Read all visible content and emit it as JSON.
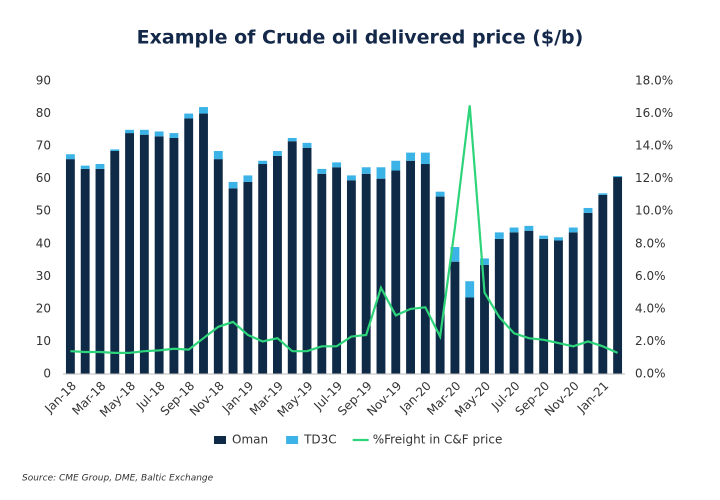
{
  "chart_data": {
    "type": "bar_line",
    "title": "Example of Crude oil delivered price ($/b)",
    "source": "Source: CME Group, DME, Baltic Exchange",
    "categories": [
      "Jan-18",
      null,
      "Mar-18",
      null,
      "May-18",
      null,
      "Jul-18",
      null,
      "Sep-18",
      null,
      "Nov-18",
      null,
      "Jan-19",
      null,
      "Mar-19",
      null,
      "May-19",
      null,
      "Jul-19",
      null,
      "Sep-19",
      null,
      "Nov-19",
      null,
      "Jan-20",
      null,
      "Mar-20",
      null,
      "May-20",
      null,
      "Jul-20",
      null,
      "Sep-20",
      null,
      "Nov-20",
      null,
      "Jan-21",
      null
    ],
    "series": [
      {
        "name": "Oman",
        "color": "#0f2a47",
        "values": [
          66,
          63,
          63,
          68.5,
          74,
          73.5,
          73,
          72.5,
          78.5,
          80,
          66,
          57,
          59,
          64.5,
          67,
          71.5,
          69.5,
          61.5,
          63.5,
          59.5,
          61.5,
          60,
          62.5,
          65.5,
          64.5,
          54.5,
          34.5,
          23.5,
          33.5,
          41.5,
          43.5,
          44,
          41.5,
          41,
          43.5,
          49.5,
          55,
          60.5
        ]
      },
      {
        "name": "TD3C",
        "color": "#3bb3e6",
        "values": [
          1.5,
          1,
          1.5,
          0.5,
          1,
          1.5,
          1.5,
          1.5,
          1.5,
          2,
          2.5,
          2,
          2,
          1,
          1.5,
          1,
          1.5,
          1.5,
          1.5,
          1.5,
          2,
          3.5,
          3,
          2.5,
          3.5,
          1.5,
          4.5,
          5,
          2,
          2,
          1.5,
          1.5,
          1,
          1,
          1.5,
          1.5,
          0.5,
          0.3
        ]
      },
      {
        "name": "%Freight in C&F price",
        "color": "#2ed47a",
        "axis": "y2",
        "values": [
          1.4,
          1.35,
          1.35,
          1.3,
          1.3,
          1.4,
          1.45,
          1.55,
          1.5,
          2.2,
          2.9,
          3.2,
          2.4,
          2.0,
          2.2,
          1.4,
          1.4,
          1.7,
          1.7,
          2.3,
          2.4,
          5.3,
          3.6,
          4.0,
          4.1,
          2.3,
          9.0,
          16.5,
          5.0,
          3.5,
          2.5,
          2.2,
          2.1,
          1.9,
          1.7,
          2.0,
          1.7,
          1.3
        ]
      }
    ],
    "ylim": [
      0,
      90
    ],
    "yticks": [
      0,
      10,
      20,
      30,
      40,
      50,
      60,
      70,
      80,
      90
    ],
    "y2lim": [
      0,
      18
    ],
    "y2ticks": [
      {
        "value": 0,
        "label": "0.0%"
      },
      {
        "value": 2,
        "label": "2.0%"
      },
      {
        "value": 4,
        "label": "4.0%"
      },
      {
        "value": 6,
        "label": "6.0%"
      },
      {
        "value": 8,
        "label": "8.0%"
      },
      {
        "value": 10,
        "label": "10.0%"
      },
      {
        "value": 12,
        "label": "12.0%"
      },
      {
        "value": 14,
        "label": "14.0%"
      },
      {
        "value": 16,
        "label": "16.0%"
      },
      {
        "value": 18,
        "label": "18.0%"
      }
    ],
    "grid": false
  }
}
